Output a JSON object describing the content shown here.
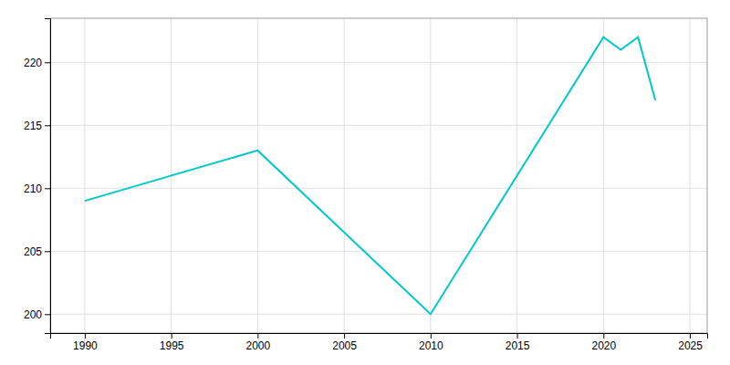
{
  "chart_data": {
    "type": "line",
    "x": [
      1990,
      2000,
      2010,
      2020,
      2021,
      2022,
      2023
    ],
    "values": [
      209,
      213,
      200,
      222,
      221,
      222,
      217
    ],
    "color": "#00c8c8",
    "xlim": [
      1988,
      2026
    ],
    "ylim": [
      198.5,
      223.5
    ],
    "xticks": [
      1990,
      1995,
      2000,
      2005,
      2010,
      2015,
      2020,
      2025
    ],
    "yticks": [
      200,
      205,
      210,
      215,
      220
    ],
    "grid": true
  }
}
